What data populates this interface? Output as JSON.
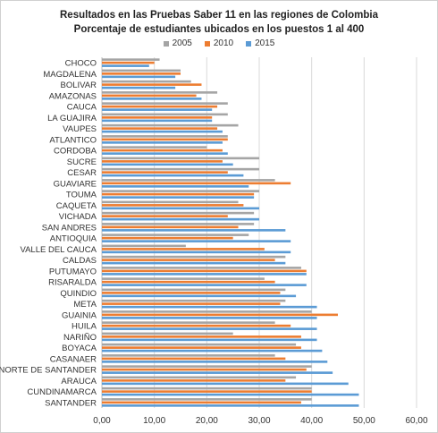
{
  "colors": {
    "s2005": "#a5a5a5",
    "s2010": "#ed7d31",
    "s2015": "#5b9bd5",
    "grid": "#d9d9d9",
    "text": "#333333"
  },
  "chart_data": {
    "type": "bar",
    "orientation": "horizontal",
    "title": "Resultados en las Pruebas Saber 11 en las regiones de Colombia",
    "subtitle": "Porcentaje de estudiantes ubicados en los puestos 1 al 400",
    "legend_position": "top",
    "grid": true,
    "xlim": [
      0,
      60
    ],
    "x_ticks": [
      "0,00",
      "10,00",
      "20,00",
      "30,00",
      "40,00",
      "50,00",
      "60,00"
    ],
    "categories": [
      "CHOCO",
      "MAGDALENA",
      "BOLIVAR",
      "AMAZONAS",
      "CAUCA",
      "LA GUAJIRA",
      "VAUPES",
      "ATLANTICO",
      "CORDOBA",
      "SUCRE",
      "CESAR",
      "GUAVIARE",
      "TOUMA",
      "CAQUETA",
      "VICHADA",
      "SAN ANDRES",
      "ANTIOQUIA",
      "VALLE DEL CAUCA",
      "CALDAS",
      "PUTUMAYO",
      "RISARALDA",
      "QUINDIO",
      "META",
      "GUAINIA",
      "HUILA",
      "NARIÑO",
      "BOYACA",
      "CASANAER",
      "NORTE DE SANTANDER",
      "ARAUCA",
      "CUNDINAMARCA",
      "SANTANDER"
    ],
    "series": [
      {
        "name": "2005",
        "values": [
          11,
          15,
          17,
          22,
          24,
          24,
          26,
          24,
          20,
          30,
          30,
          33,
          30,
          26,
          29,
          29,
          28,
          16,
          35,
          38,
          31,
          35,
          35,
          40,
          33,
          25,
          37,
          33,
          40,
          37,
          40,
          40
        ]
      },
      {
        "name": "2010",
        "values": [
          10,
          15,
          19,
          18,
          22,
          21,
          22,
          24,
          23,
          23,
          24,
          36,
          29,
          27,
          24,
          26,
          25,
          31,
          33,
          39,
          33,
          34,
          34,
          45,
          36,
          38,
          38,
          35,
          39,
          35,
          40,
          38
        ]
      },
      {
        "name": "2015",
        "values": [
          9,
          14,
          14,
          19,
          21,
          21,
          23,
          23,
          24,
          25,
          27,
          28,
          29,
          30,
          30,
          35,
          36,
          36,
          35,
          39,
          39,
          37,
          41,
          41,
          41,
          41,
          42,
          43,
          44,
          47,
          49,
          49
        ]
      }
    ]
  }
}
